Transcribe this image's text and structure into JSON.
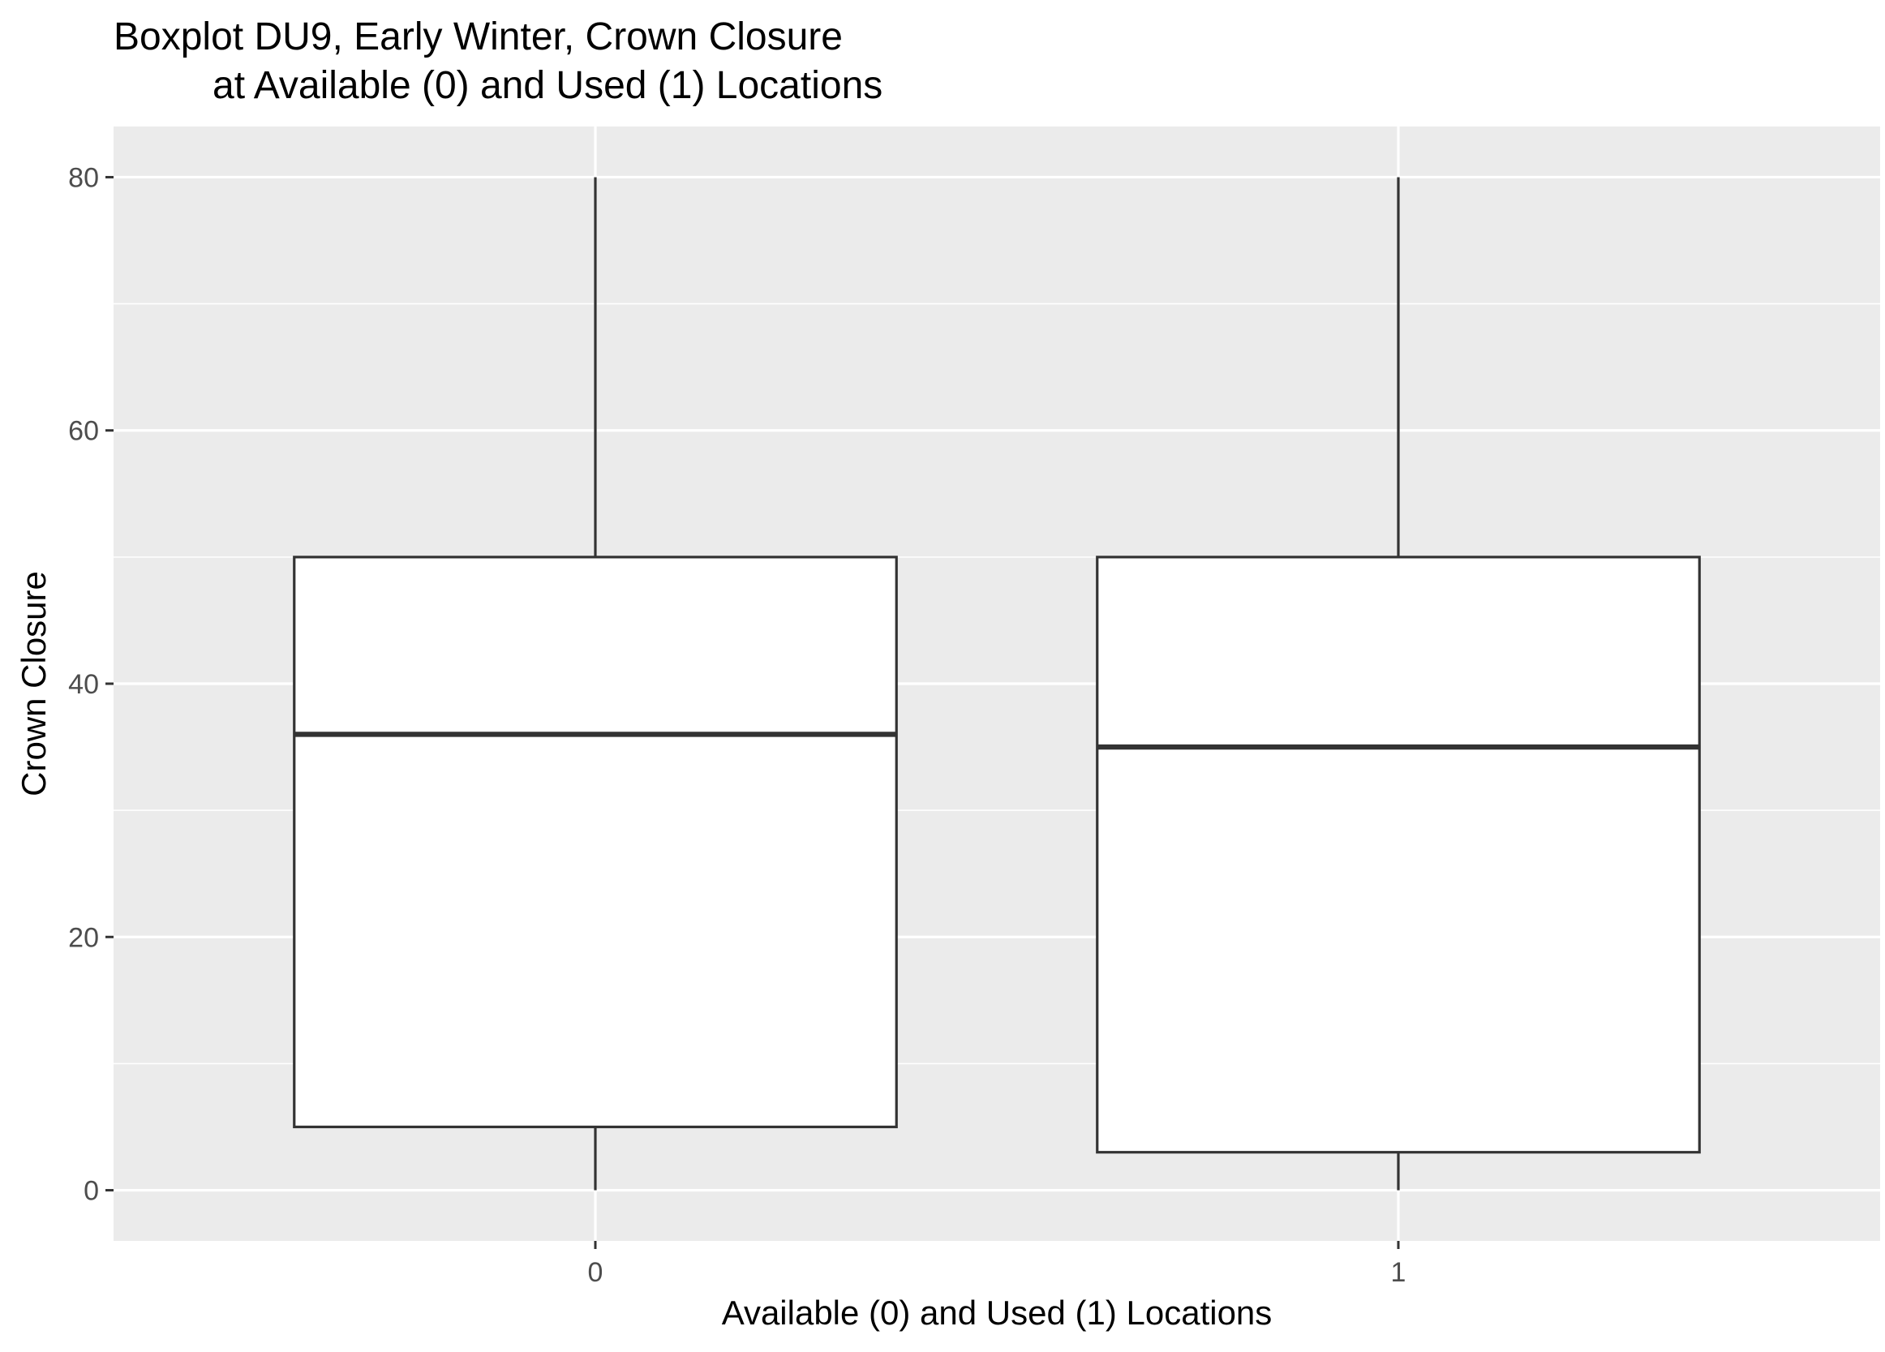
{
  "chart_data": {
    "type": "boxplot",
    "title_lines": [
      "Boxplot DU9, Early Winter, Crown Closure",
      "at Available (0) and Used (1) Locations"
    ],
    "xlabel": "Available (0) and Used (1) Locations",
    "ylabel": "Crown Closure",
    "categories": [
      "0",
      "1"
    ],
    "ylim": [
      -4,
      84
    ],
    "y_ticks": [
      0,
      20,
      40,
      60,
      80
    ],
    "y_tick_labels": [
      "0",
      "20",
      "40",
      "60",
      "80"
    ],
    "grid": true,
    "legend": "none",
    "boxes": [
      {
        "category": "0",
        "min": 0,
        "q1": 5,
        "median": 36,
        "q3": 50,
        "max": 80
      },
      {
        "category": "1",
        "min": 0,
        "q1": 3,
        "median": 35,
        "q3": 50,
        "max": 80
      }
    ],
    "colors": {
      "panel_background": "#ebebeb",
      "grid": "#ffffff",
      "box_fill": "#ffffff",
      "box_stroke": "#333333",
      "tick_mark": "#333333"
    }
  }
}
